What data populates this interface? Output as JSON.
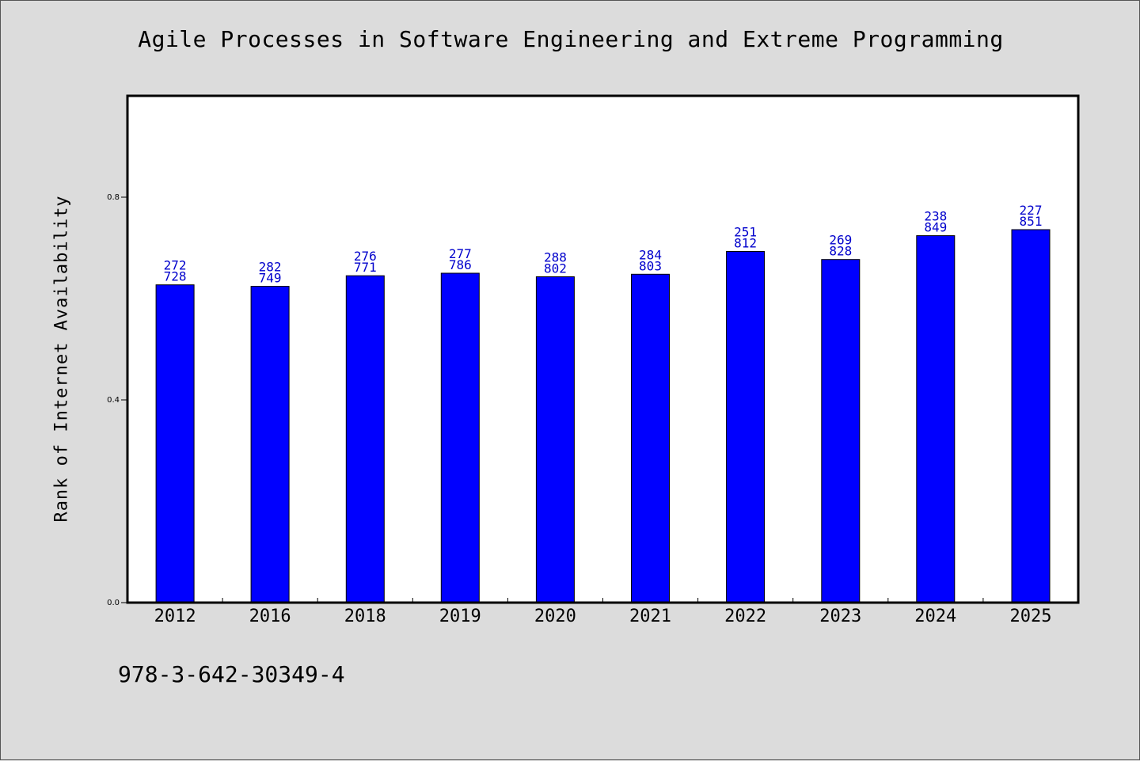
{
  "chart_data": {
    "type": "bar",
    "title": "Agile Processes in Software Engineering and Extreme Programming",
    "ylabel": "Rank of Internet Availability",
    "xlabel": "",
    "categories": [
      "2012",
      "2016",
      "2018",
      "2019",
      "2020",
      "2021",
      "2022",
      "2023",
      "2024",
      "2025"
    ],
    "values": [
      0.627,
      0.624,
      0.645,
      0.65,
      0.643,
      0.648,
      0.693,
      0.677,
      0.724,
      0.736
    ],
    "bar_labels": [
      [
        "272",
        "728"
      ],
      [
        "282",
        "749"
      ],
      [
        "276",
        "771"
      ],
      [
        "277",
        "786"
      ],
      [
        "288",
        "802"
      ],
      [
        "284",
        "803"
      ],
      [
        "251",
        "812"
      ],
      [
        "269",
        "828"
      ],
      [
        "238",
        "849"
      ],
      [
        "227",
        "851"
      ]
    ],
    "ylim": [
      0.0,
      1.0
    ],
    "yticks": [
      0.0,
      0.4,
      0.8
    ],
    "ytick_labels": [
      "0.0",
      "0.4",
      "0.8"
    ],
    "grid": false,
    "legend": "none",
    "colors": {
      "bar": "#0000ff",
      "bar_label": "#0000cc",
      "background": "#dcdcdc",
      "plot_area": "#ffffff"
    }
  },
  "footer": {
    "isbn": "978-3-642-30349-4"
  }
}
